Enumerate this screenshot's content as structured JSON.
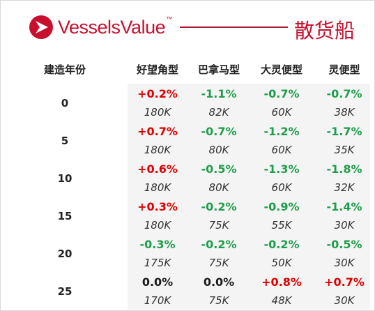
{
  "logo": {
    "name": "VesselsValue",
    "tm": "™",
    "accent_color": "#c8102e"
  },
  "title": "散货船",
  "table": {
    "row_header": "建造年份",
    "columns": [
      "好望角型",
      "巴拿马型",
      "大灵便型",
      "灵便型"
    ],
    "rows": [
      {
        "age": "0",
        "changes": [
          "+0.2%",
          "-1.1%",
          "-0.7%",
          "-0.7%"
        ],
        "values": [
          "180K",
          "82K",
          "60K",
          "38K"
        ]
      },
      {
        "age": "5",
        "changes": [
          "+0.7%",
          "-0.7%",
          "-1.2%",
          "-1.7%"
        ],
        "values": [
          "180K",
          "80K",
          "60K",
          "35K"
        ]
      },
      {
        "age": "10",
        "changes": [
          "+0.6%",
          "-0.5%",
          "-1.3%",
          "-1.8%"
        ],
        "values": [
          "180K",
          "80K",
          "60K",
          "32K"
        ]
      },
      {
        "age": "15",
        "changes": [
          "+0.3%",
          "-0.2%",
          "-0.9%",
          "-1.4%"
        ],
        "values": [
          "180K",
          "75K",
          "55K",
          "30K"
        ]
      },
      {
        "age": "20",
        "changes": [
          "-0.3%",
          "-0.2%",
          "-0.2%",
          "-0.5%"
        ],
        "values": [
          "175K",
          "75K",
          "50K",
          "30K"
        ]
      },
      {
        "age": "25",
        "changes": [
          "0.0%",
          "0.0%",
          "+0.8%",
          "+0.7%"
        ],
        "values": [
          "170K",
          "75K",
          "48K",
          "30K"
        ]
      }
    ]
  },
  "colors": {
    "positive": "#e00000",
    "negative": "#1e9e4a",
    "neutral": "#1a1a1a"
  }
}
